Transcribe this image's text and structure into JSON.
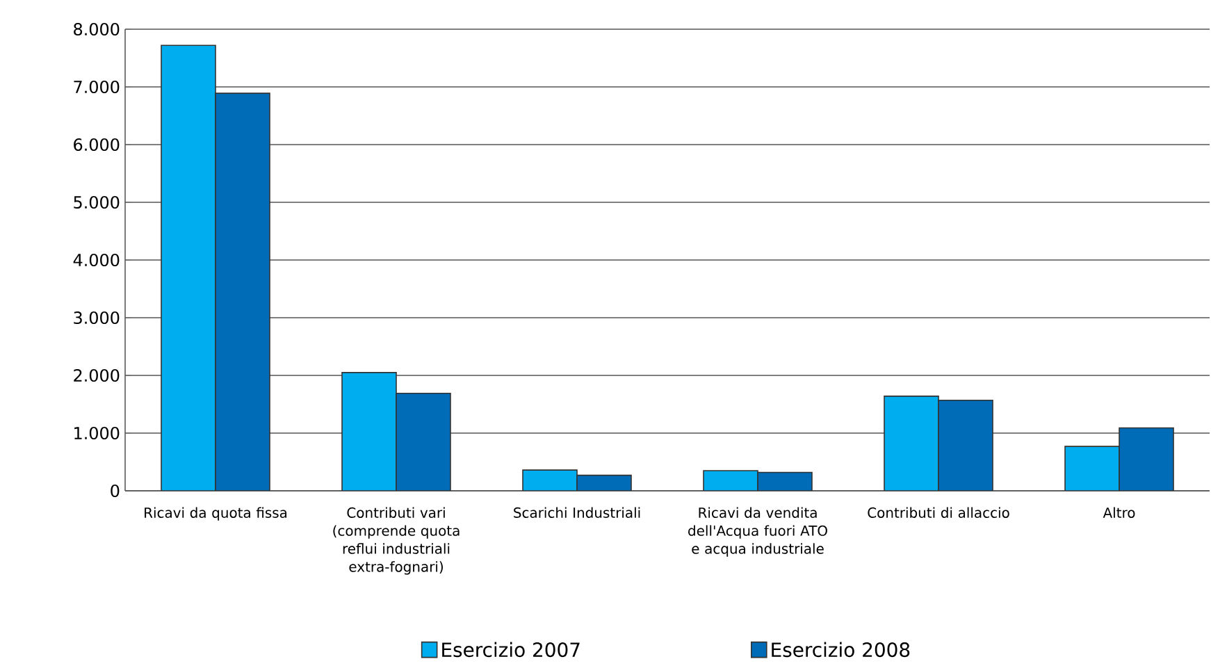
{
  "chart_data": {
    "type": "bar",
    "categories": [
      "Ricavi da quota fissa",
      "Contributi vari (comprende quota reflui industriali extra-fognari)",
      "Scarichi Industriali",
      "Ricavi da vendita dell'Acqua fuori ATO e acqua industriale",
      "Contributi di allaccio",
      "Altro"
    ],
    "series": [
      {
        "name": "Esercizio 2007",
        "color": "#00aeef",
        "values": [
          7720,
          2050,
          360,
          350,
          1640,
          770
        ]
      },
      {
        "name": "Esercizio 2008",
        "color": "#006bb6",
        "values": [
          6890,
          1690,
          270,
          320,
          1570,
          1090
        ]
      }
    ],
    "ylim": [
      0,
      8000
    ],
    "yticks": [
      {
        "value": 0,
        "label": "0"
      },
      {
        "value": 1000,
        "label": "1.000"
      },
      {
        "value": 2000,
        "label": "2.000"
      },
      {
        "value": 3000,
        "label": "3.000"
      },
      {
        "value": 4000,
        "label": "4.000"
      },
      {
        "value": 5000,
        "label": "5.000"
      },
      {
        "value": 6000,
        "label": "6.000"
      },
      {
        "value": 7000,
        "label": "7.000"
      },
      {
        "value": 8000,
        "label": "8.000"
      }
    ],
    "grid": "y",
    "legend": "bottom"
  }
}
